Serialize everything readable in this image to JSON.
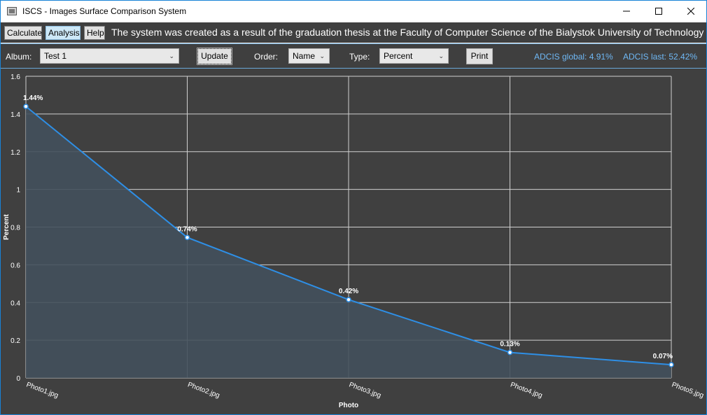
{
  "window": {
    "title": "ISCS - Images Surface Comparison System",
    "minimize_glyph": "—",
    "maximize_glyph": "☐",
    "close_glyph": "✕"
  },
  "menu": {
    "calculate_label": "Calculate",
    "analysis_label": "Analysis",
    "help_label": "Help",
    "thesis_text": "The system was created as a result of the graduation thesis at the Faculty of Computer Science of the Bialystok University of Technology"
  },
  "toolbar": {
    "album_label": "Album:",
    "album_value": "Test 1",
    "update_label": "Update",
    "order_label": "Order:",
    "order_value": "Name",
    "type_label": "Type:",
    "type_value": "Percent",
    "print_label": "Print",
    "adcis_global": "ADCIS global: 4.91%",
    "adcis_last": "ADCIS last: 52.42%"
  },
  "colors": {
    "background": "#404040",
    "line": "#2e8fe6",
    "fill": "#42505c",
    "grid": "#d0d0d0",
    "adcis_text": "#6fb8f5"
  },
  "chart_data": {
    "type": "area",
    "categories": [
      "Photo1.jpg",
      "Photo2.jpg",
      "Photo3.jpg",
      "Photo4.jpg",
      "Photo5.jpg"
    ],
    "values": [
      1.44,
      0.745,
      0.415,
      0.135,
      0.07
    ],
    "data_labels": [
      "1.44%",
      "0.74%",
      "0.42%",
      "0.13%",
      "0.07%"
    ],
    "xlabel": "Photo",
    "ylabel": "Percent",
    "ylim": [
      0,
      1.6
    ],
    "yticks": [
      "0",
      "0.2",
      "0.4",
      "0.6",
      "0.8",
      "1",
      "1.2",
      "1.4",
      "1.6"
    ],
    "ytick_values": [
      0,
      0.2,
      0.4,
      0.6,
      0.8,
      1,
      1.2,
      1.4,
      1.6
    ],
    "grid": true
  }
}
